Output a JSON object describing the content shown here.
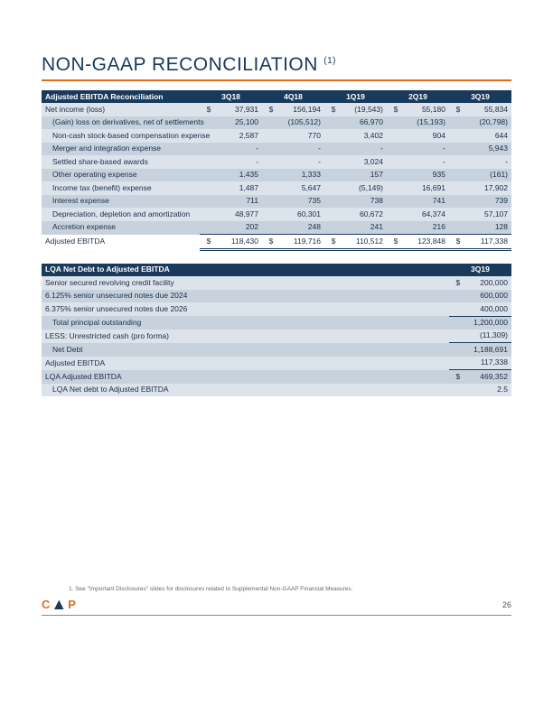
{
  "title": "NON-GAAP RECONCILIATION",
  "title_sup": "(1)",
  "colors": {
    "header_bg": "#1a3a5c",
    "accent": "#e26a1a",
    "shade_light": "#dce3ea",
    "shade_dark": "#c8d2dc",
    "text": "#1a2d4a"
  },
  "t1": {
    "header": "Adjusted EBITDA Reconciliation",
    "periods": [
      "3Q18",
      "4Q18",
      "1Q19",
      "2Q19",
      "3Q19"
    ],
    "rows": [
      {
        "label": "Net income (loss)",
        "indent": 0,
        "shade": "light",
        "cur": "$",
        "vals": [
          "37,931",
          "156,194",
          "(19,543)",
          "55,180",
          "55,834"
        ]
      },
      {
        "label": "(Gain) loss on derivatives, net of settlements",
        "indent": 1,
        "shade": "dark",
        "vals": [
          "25,100",
          "(105,512)",
          "66,970",
          "(15,193)",
          "(20,798)"
        ]
      },
      {
        "label": "Non-cash stock-based compensation expense",
        "indent": 1,
        "shade": "light",
        "vals": [
          "2,587",
          "770",
          "3,402",
          "904",
          "644"
        ]
      },
      {
        "label": "Merger and integration expense",
        "indent": 1,
        "shade": "dark",
        "vals": [
          "-",
          "-",
          "-",
          "-",
          "5,943"
        ]
      },
      {
        "label": "Settled share-based awards",
        "indent": 1,
        "shade": "light",
        "vals": [
          "-",
          "-",
          "3,024",
          "-",
          "-"
        ]
      },
      {
        "label": "Other operating expense",
        "indent": 1,
        "shade": "dark",
        "vals": [
          "1,435",
          "1,333",
          "157",
          "935",
          "(161)"
        ]
      },
      {
        "label": "Income tax (benefit) expense",
        "indent": 1,
        "shade": "light",
        "vals": [
          "1,487",
          "5,647",
          "(5,149)",
          "16,691",
          "17,902"
        ]
      },
      {
        "label": "Interest expense",
        "indent": 1,
        "shade": "dark",
        "vals": [
          "711",
          "735",
          "738",
          "741",
          "739"
        ]
      },
      {
        "label": "Depreciation, depletion and amortization",
        "indent": 1,
        "shade": "light",
        "vals": [
          "48,977",
          "60,301",
          "60,672",
          "64,374",
          "57,107"
        ]
      },
      {
        "label": "Accretion expense",
        "indent": 1,
        "shade": "dark",
        "vals": [
          "202",
          "248",
          "241",
          "216",
          "128"
        ]
      }
    ],
    "total": {
      "label": "Adjusted EBITDA",
      "cur": "$",
      "vals": [
        "118,430",
        "119,716",
        "110,512",
        "123,848",
        "117,338"
      ]
    }
  },
  "t2": {
    "header": "LQA Net Debt to Adjusted EBITDA",
    "period": "3Q19",
    "rows": [
      {
        "label": "Senior secured revolving credit facility",
        "shade": "light",
        "cur": "$",
        "val": "200,000"
      },
      {
        "label": "6.125% senior unsecured notes due 2024",
        "shade": "dark",
        "val": "600,000"
      },
      {
        "label": "6.375% senior unsecured notes due 2026",
        "shade": "light",
        "val": "400,000",
        "bb": true
      },
      {
        "label": "Total principal outstanding",
        "indent": 1,
        "shade": "dark",
        "val": "1,200,000"
      },
      {
        "label": "LESS: Unrestricted cash (pro forma)",
        "shade": "light",
        "val": "(11,309)",
        "bb": true
      },
      {
        "label": "Net Debt",
        "indent": 1,
        "shade": "dark",
        "val": "1,188,691"
      },
      {
        "label": "Adjusted EBITDA",
        "shade": "light",
        "val": "117,338",
        "bb": true
      },
      {
        "label": "LQA Adjusted EBITDA",
        "shade": "dark",
        "cur": "$",
        "val": "469,352"
      },
      {
        "label": "LQA Net debt to Adjusted EBITDA",
        "indent": 1,
        "shade": "light",
        "val": "2.5"
      }
    ]
  },
  "footnote": "1.  See \"Important Disclosures\" slides for disclosures related to Supplemental Non-GAAP Financial Measures.",
  "page_number": "26"
}
